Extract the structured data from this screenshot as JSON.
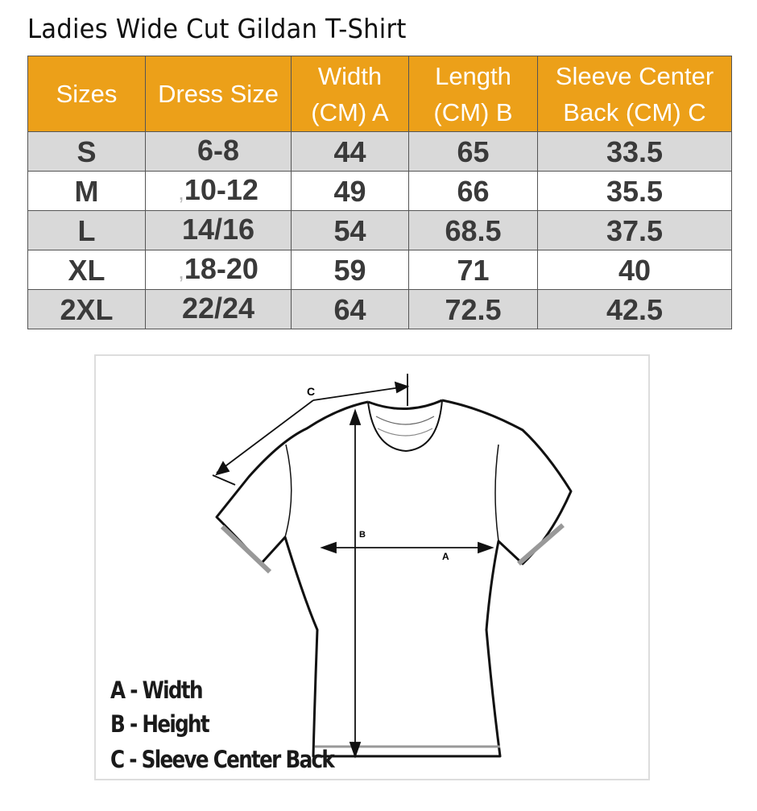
{
  "title": "Ladies Wide Cut Gildan T-Shirt",
  "colors": {
    "header_bg": "#ECA019",
    "header_text": "#FFFFFF",
    "alt_row": "#D9D9D9",
    "cell_text": "#3A3A3A"
  },
  "table": {
    "headers": [
      [
        "Sizes"
      ],
      [
        "Dress Size"
      ],
      [
        "Width",
        "(CM) A"
      ],
      [
        "Length",
        "(CM) B"
      ],
      [
        "Sleeve Center",
        "Back (CM) C"
      ]
    ],
    "rows": [
      {
        "size": "S",
        "prefix": "",
        "dress": "6-8",
        "width": "44",
        "length": "65",
        "sleeve": "33.5"
      },
      {
        "size": "M",
        "prefix": ",",
        "dress": "10-12",
        "width": "49",
        "length": "66",
        "sleeve": "35.5"
      },
      {
        "size": "L",
        "prefix": "",
        "dress": "14/16",
        "width": "54",
        "length": "68.5",
        "sleeve": "37.5"
      },
      {
        "size": "XL",
        "prefix": ",",
        "dress": "18-20",
        "width": "59",
        "length": "71",
        "sleeve": "40"
      },
      {
        "size": "2XL",
        "prefix": "",
        "dress": "22/24",
        "width": "64",
        "length": "72.5",
        "sleeve": "42.5"
      }
    ]
  },
  "diagram": {
    "markers": {
      "a": "A",
      "b": "B",
      "c": "C"
    },
    "legend": [
      "A - Width",
      "B - Height",
      "C - Sleeve Center Back"
    ]
  }
}
